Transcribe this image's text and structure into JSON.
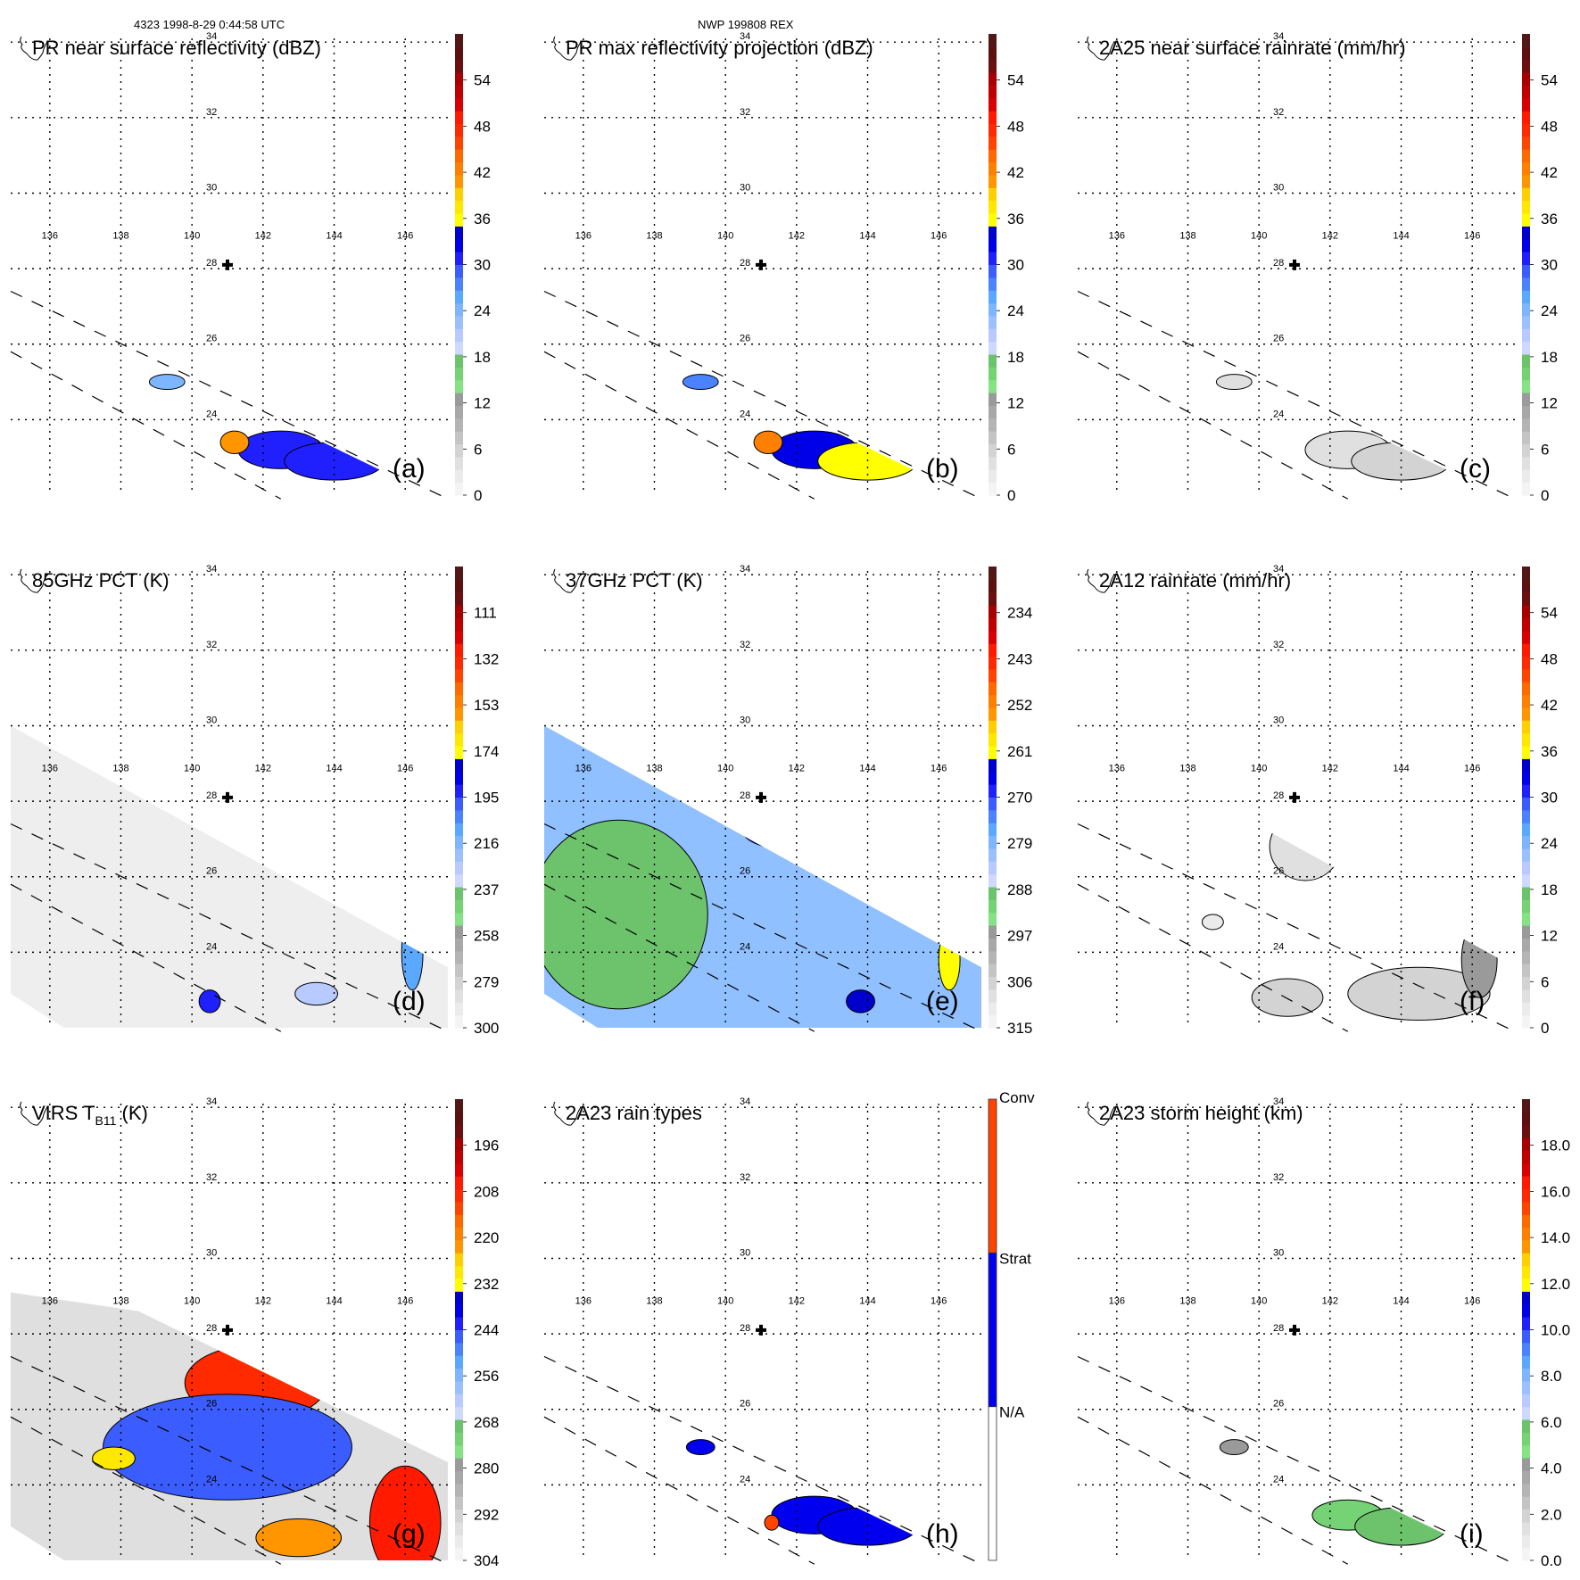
{
  "header": {
    "left": "4323 1998-8-29 0:44:58 UTC",
    "center": "NWP 199808 REX"
  },
  "chart_data": [
    {
      "type": "heatmap",
      "panel": "(a)",
      "title": "PR near surface reflectivity (dBZ)",
      "colorbar": {
        "ticks": [
          "0",
          "6",
          "12",
          "18",
          "24",
          "30",
          "36",
          "42",
          "48",
          "54"
        ],
        "range": [
          0,
          60
        ],
        "unit": "dBZ"
      },
      "lon_ticks": [
        "136",
        "138",
        "140",
        "142",
        "144",
        "146"
      ],
      "lat_ticks": [
        "24",
        "26",
        "28",
        "30",
        "32",
        "34"
      ],
      "swath": "narrow",
      "fields": [
        {
          "lon": 142.5,
          "lat": 23.2,
          "rx": 1.2,
          "ry": 0.5,
          "value": 30
        },
        {
          "lon": 144.0,
          "lat": 22.9,
          "rx": 1.4,
          "ry": 0.5,
          "value": 30
        },
        {
          "lon": 139.3,
          "lat": 25.0,
          "rx": 0.5,
          "ry": 0.2,
          "value": 24
        },
        {
          "lon": 141.2,
          "lat": 23.4,
          "rx": 0.4,
          "ry": 0.3,
          "value": 40
        }
      ]
    },
    {
      "type": "heatmap",
      "panel": "(b)",
      "title": "PR max reflectivity projection (dBZ)",
      "colorbar": {
        "ticks": [
          "0",
          "6",
          "12",
          "18",
          "24",
          "30",
          "36",
          "42",
          "48",
          "54"
        ],
        "range": [
          0,
          60
        ],
        "unit": "dBZ"
      },
      "lon_ticks": [
        "136",
        "138",
        "140",
        "142",
        "144",
        "146"
      ],
      "lat_ticks": [
        "24",
        "26",
        "28",
        "30",
        "32",
        "34"
      ],
      "swath": "narrow",
      "fields": [
        {
          "lon": 142.5,
          "lat": 23.2,
          "rx": 1.2,
          "ry": 0.5,
          "value": 32
        },
        {
          "lon": 144.0,
          "lat": 22.9,
          "rx": 1.4,
          "ry": 0.5,
          "value": 36
        },
        {
          "lon": 139.3,
          "lat": 25.0,
          "rx": 0.5,
          "ry": 0.2,
          "value": 28
        },
        {
          "lon": 141.2,
          "lat": 23.4,
          "rx": 0.4,
          "ry": 0.3,
          "value": 42
        }
      ]
    },
    {
      "type": "heatmap",
      "panel": "(c)",
      "title": "2A25 near surface rainrate (mm/hr)",
      "colorbar": {
        "ticks": [
          "0",
          "6",
          "12",
          "18",
          "24",
          "30",
          "36",
          "42",
          "48",
          "54"
        ],
        "range": [
          0,
          60
        ],
        "unit": "mm/hr"
      },
      "lon_ticks": [
        "136",
        "138",
        "140",
        "142",
        "144",
        "146"
      ],
      "lat_ticks": [
        "24",
        "26",
        "28",
        "30",
        "32",
        "34"
      ],
      "swath": "narrow",
      "fields": [
        {
          "lon": 142.5,
          "lat": 23.2,
          "rx": 1.2,
          "ry": 0.5,
          "value": 4
        },
        {
          "lon": 144.0,
          "lat": 22.9,
          "rx": 1.4,
          "ry": 0.5,
          "value": 5
        },
        {
          "lon": 139.3,
          "lat": 25.0,
          "rx": 0.5,
          "ry": 0.2,
          "value": 4
        }
      ]
    },
    {
      "type": "heatmap",
      "panel": "(d)",
      "title": "85GHz PCT (K)",
      "colorbar": {
        "ticks": [
          "300",
          "279",
          "258",
          "237",
          "216",
          "195",
          "174",
          "153",
          "132",
          "111"
        ],
        "range": [
          300,
          90
        ],
        "unit": "K"
      },
      "lon_ticks": [
        "136",
        "138",
        "140",
        "142",
        "144",
        "146"
      ],
      "lat_ticks": [
        "24",
        "26",
        "28",
        "30",
        "32",
        "34"
      ],
      "swath": "wide",
      "background_value": 285,
      "fields": [
        {
          "lon": 146.2,
          "lat": 24.0,
          "rx": 0.3,
          "ry": 1.0,
          "value": 210
        },
        {
          "lon": 143.5,
          "lat": 22.9,
          "rx": 0.6,
          "ry": 0.3,
          "value": 225
        },
        {
          "lon": 140.5,
          "lat": 22.7,
          "rx": 0.3,
          "ry": 0.3,
          "value": 190
        }
      ]
    },
    {
      "type": "heatmap",
      "panel": "(e)",
      "title": "37GHz PCT (K)",
      "colorbar": {
        "ticks": [
          "315",
          "306",
          "297",
          "288",
          "279",
          "270",
          "261",
          "252",
          "243",
          "234"
        ],
        "range": [
          315,
          225
        ],
        "unit": "K"
      },
      "lon_ticks": [
        "136",
        "138",
        "140",
        "142",
        "144",
        "146"
      ],
      "lat_ticks": [
        "24",
        "26",
        "28",
        "30",
        "32",
        "34"
      ],
      "swath": "wide",
      "background_value": 280,
      "fields": [
        {
          "lon": 137.0,
          "lat": 25.0,
          "rx": 2.5,
          "ry": 2.5,
          "value": 288
        },
        {
          "lon": 142.0,
          "lat": 27.2,
          "rx": 1.5,
          "ry": 0.5,
          "value": 270
        },
        {
          "lon": 146.3,
          "lat": 23.8,
          "rx": 0.3,
          "ry": 0.8,
          "value": 262
        },
        {
          "lon": 143.8,
          "lat": 22.7,
          "rx": 0.4,
          "ry": 0.3,
          "value": 265
        }
      ]
    },
    {
      "type": "heatmap",
      "panel": "(f)",
      "title": "2A12 rainrate (mm/hr)",
      "colorbar": {
        "ticks": [
          "0",
          "6",
          "12",
          "18",
          "24",
          "30",
          "36",
          "42",
          "48",
          "54"
        ],
        "range": [
          0,
          60
        ],
        "unit": "mm/hr"
      },
      "lon_ticks": [
        "136",
        "138",
        "140",
        "142",
        "144",
        "146"
      ],
      "lat_ticks": [
        "24",
        "26",
        "28",
        "30",
        "32",
        "34"
      ],
      "swath": "wide",
      "fields": [
        {
          "lon": 141.3,
          "lat": 26.8,
          "rx": 1.0,
          "ry": 0.9,
          "value": 4
        },
        {
          "lon": 144.5,
          "lat": 22.9,
          "rx": 2.0,
          "ry": 0.7,
          "value": 5
        },
        {
          "lon": 146.2,
          "lat": 23.8,
          "rx": 0.5,
          "ry": 1.0,
          "value": 12
        },
        {
          "lon": 140.8,
          "lat": 22.8,
          "rx": 1.0,
          "ry": 0.5,
          "value": 5
        },
        {
          "lon": 138.7,
          "lat": 24.8,
          "rx": 0.3,
          "ry": 0.2,
          "value": 3
        }
      ]
    },
    {
      "type": "heatmap",
      "panel": "(g)",
      "title": "VIRS T",
      "title_sub": "B11",
      "title_suffix": " (K)",
      "colorbar": {
        "ticks": [
          "304",
          "292",
          "280",
          "268",
          "256",
          "244",
          "232",
          "220",
          "208",
          "196"
        ],
        "range": [
          304,
          184
        ],
        "unit": "K"
      },
      "lon_ticks": [
        "136",
        "138",
        "140",
        "142",
        "144",
        "146"
      ],
      "lat_ticks": [
        "24",
        "26",
        "28",
        "30",
        "32",
        "34"
      ],
      "swath": "wide",
      "background_value": 290,
      "fields": [
        {
          "lon": 141.8,
          "lat": 26.7,
          "rx": 2.0,
          "ry": 1.0,
          "value": 210
        },
        {
          "lon": 141.0,
          "lat": 25.0,
          "rx": 3.5,
          "ry": 1.4,
          "value": 245
        },
        {
          "lon": 146.0,
          "lat": 23.0,
          "rx": 1.0,
          "ry": 1.5,
          "value": 205
        },
        {
          "lon": 143.0,
          "lat": 22.6,
          "rx": 1.2,
          "ry": 0.5,
          "value": 222
        },
        {
          "lon": 137.8,
          "lat": 24.7,
          "rx": 0.6,
          "ry": 0.3,
          "value": 228
        }
      ]
    },
    {
      "type": "heatmap",
      "panel": "(h)",
      "title": "2A23 rain types",
      "colorbar": {
        "categories": [
          "N/A",
          "Strat",
          "Conv"
        ],
        "colors": [
          "#ffffff",
          "#0000ee",
          "#ff4400"
        ]
      },
      "lon_ticks": [
        "136",
        "138",
        "140",
        "142",
        "144",
        "146"
      ],
      "lat_ticks": [
        "24",
        "26",
        "28",
        "30",
        "32",
        "34"
      ],
      "swath": "narrow",
      "fields": [
        {
          "lon": 142.5,
          "lat": 23.2,
          "rx": 1.2,
          "ry": 0.5,
          "category": "Strat"
        },
        {
          "lon": 144.0,
          "lat": 22.9,
          "rx": 1.4,
          "ry": 0.5,
          "category": "Strat"
        },
        {
          "lon": 139.3,
          "lat": 25.0,
          "rx": 0.4,
          "ry": 0.2,
          "category": "Strat"
        },
        {
          "lon": 141.3,
          "lat": 23.0,
          "rx": 0.2,
          "ry": 0.2,
          "category": "Conv"
        }
      ]
    },
    {
      "type": "heatmap",
      "panel": "(i)",
      "title": "2A23 storm height (km)",
      "colorbar": {
        "ticks": [
          "0.0",
          "2.0",
          "4.0",
          "6.0",
          "8.0",
          "10.0",
          "12.0",
          "14.0",
          "16.0",
          "18.0"
        ],
        "range": [
          0,
          20
        ],
        "unit": "km"
      },
      "lon_ticks": [
        "136",
        "138",
        "140",
        "142",
        "144",
        "146"
      ],
      "lat_ticks": [
        "24",
        "26",
        "28",
        "30",
        "32",
        "34"
      ],
      "swath": "narrow",
      "fields": [
        {
          "lon": 142.5,
          "lat": 23.2,
          "rx": 1.0,
          "ry": 0.4,
          "value": 5
        },
        {
          "lon": 144.0,
          "lat": 22.9,
          "rx": 1.3,
          "ry": 0.5,
          "value": 6
        },
        {
          "lon": 139.3,
          "lat": 25.0,
          "rx": 0.4,
          "ry": 0.2,
          "value": 4
        }
      ]
    }
  ],
  "marker": {
    "label": "center-cross",
    "lon": 141.0,
    "lat": 28.0
  },
  "palette": {
    "bins": [
      "#f4f4f4",
      "#ebebeb",
      "#e0e0e0",
      "#d3d3d3",
      "#c4c4c4",
      "#b4b4b4",
      "#a8a8a8",
      "#9a9a9a",
      "#85e385",
      "#75d275",
      "#6cc36c",
      "#cfd8ff",
      "#b8caff",
      "#9cc0ff",
      "#7db5ff",
      "#5aa8ff",
      "#4a82ff",
      "#3b5cff",
      "#2020ff",
      "#0000e8",
      "#0000cc",
      "#ffff00",
      "#ffe800",
      "#ffd000",
      "#ff9600",
      "#ff8000",
      "#ff6a00",
      "#ff4400",
      "#ff2a00",
      "#ff1a00",
      "#d80000",
      "#c00000",
      "#a80000",
      "#6a1010",
      "#5c1010",
      "#521818"
    ],
    "grid": "#000000"
  }
}
